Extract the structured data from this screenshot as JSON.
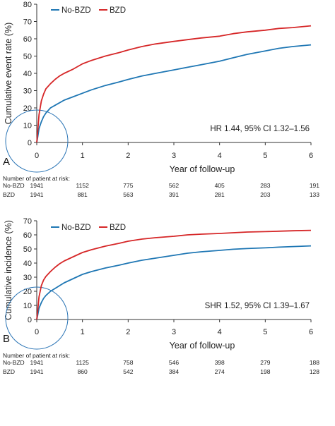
{
  "colors": {
    "no_bzd": "#1f77b4",
    "bzd": "#d62728",
    "axis": "#333333",
    "circle": "#2a74b5"
  },
  "chart_data": [
    {
      "type": "line",
      "panel_label": "A",
      "xlabel": "Year of follow-up",
      "ylabel": "Cumulative event rate (%)",
      "xlim": [
        0,
        6
      ],
      "ylim": [
        0,
        80
      ],
      "xticks": [
        "0",
        "1",
        "2",
        "3",
        "4",
        "5",
        "6"
      ],
      "yticks": [
        "0",
        "10",
        "20",
        "30",
        "40",
        "50",
        "60",
        "70",
        "80"
      ],
      "grid": false,
      "legend_position": "top-left",
      "annotation": "HR 1.44, 95% CI 1.32–1.56",
      "x": [
        0,
        0.02,
        0.05,
        0.1,
        0.15,
        0.2,
        0.3,
        0.4,
        0.5,
        0.6,
        0.8,
        1.0,
        1.2,
        1.5,
        1.8,
        2.0,
        2.3,
        2.6,
        3.0,
        3.3,
        3.6,
        4.0,
        4.3,
        4.6,
        5.0,
        5.3,
        5.6,
        6.0
      ],
      "series": [
        {
          "name": "No-BZD",
          "color_key": "no_bzd",
          "values": [
            0,
            3,
            8,
            12,
            15,
            17,
            20,
            21.5,
            23,
            24.5,
            26.5,
            28.5,
            30.5,
            33,
            35,
            36.5,
            38.5,
            40,
            42,
            43.5,
            45,
            47,
            49,
            51,
            53,
            54.5,
            55.5,
            56.5
          ]
        },
        {
          "name": "BZD",
          "color_key": "bzd",
          "values": [
            0,
            6,
            16,
            24,
            28,
            31,
            34,
            36.5,
            38.5,
            40,
            42.5,
            45.5,
            47.5,
            50,
            52,
            53.5,
            55.5,
            57,
            58.5,
            59.5,
            60.5,
            61.5,
            63,
            64,
            65,
            66,
            66.5,
            67.5
          ]
        }
      ],
      "risk_table": {
        "title": "Number of patient at risk:",
        "rows": [
          {
            "label": "No-BZD",
            "values": [
              "1941",
              "1152",
              "775",
              "562",
              "405",
              "283",
              "191"
            ]
          },
          {
            "label": "BZD",
            "values": [
              "1941",
              "881",
              "563",
              "391",
              "281",
              "203",
              "133"
            ]
          }
        ]
      }
    },
    {
      "type": "line",
      "panel_label": "B",
      "xlabel": "Year of follow-up",
      "ylabel": "Cumulative incidence (%)",
      "xlim": [
        0,
        6
      ],
      "ylim": [
        0,
        70
      ],
      "xticks": [
        "0",
        "1",
        "2",
        "3",
        "4",
        "5",
        "6"
      ],
      "yticks": [
        "0",
        "10",
        "20",
        "30",
        "40",
        "50",
        "60",
        "70"
      ],
      "grid": false,
      "legend_position": "top-left",
      "annotation": "SHR 1.52, 95% CI 1.39–1.67",
      "x": [
        0,
        0.02,
        0.05,
        0.1,
        0.15,
        0.2,
        0.3,
        0.4,
        0.5,
        0.6,
        0.8,
        1.0,
        1.2,
        1.5,
        1.8,
        2.0,
        2.3,
        2.6,
        3.0,
        3.3,
        3.6,
        4.0,
        4.3,
        4.6,
        5.0,
        5.3,
        5.6,
        6.0
      ],
      "series": [
        {
          "name": "No-BZD",
          "color_key": "no_bzd",
          "values": [
            0,
            3,
            8,
            12,
            15,
            17,
            20,
            22,
            24,
            26,
            29,
            32,
            34,
            36.5,
            38.5,
            40,
            42,
            43.5,
            45.5,
            47,
            48,
            49,
            49.8,
            50.3,
            50.8,
            51.3,
            51.7,
            52.2
          ]
        },
        {
          "name": "BZD",
          "color_key": "bzd",
          "values": [
            0,
            6,
            16,
            24,
            28,
            30.5,
            34,
            37,
            39.5,
            41.5,
            44.5,
            47.5,
            49.5,
            52,
            54,
            55.5,
            57,
            58,
            59,
            60,
            60.5,
            61,
            61.5,
            62,
            62.3,
            62.6,
            62.9,
            63.2
          ]
        }
      ],
      "risk_table": {
        "title": "Number of patient at risk:",
        "rows": [
          {
            "label": "No-BZD",
            "values": [
              "1941",
              "1125",
              "758",
              "546",
              "398",
              "279",
              "188"
            ]
          },
          {
            "label": "BZD",
            "values": [
              "1941",
              "860",
              "542",
              "384",
              "274",
              "198",
              "128"
            ]
          }
        ]
      }
    }
  ]
}
